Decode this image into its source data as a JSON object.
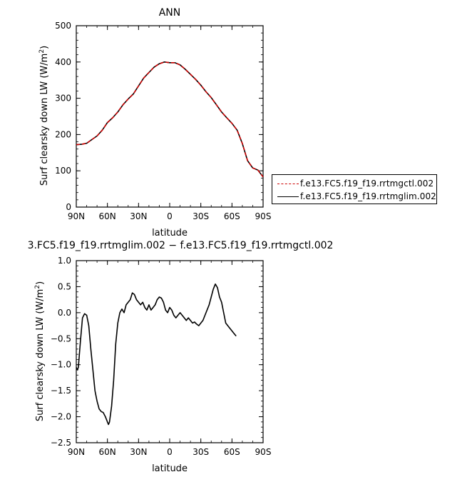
{
  "chart_data": [
    {
      "type": "line",
      "title": "ANN",
      "xlabel": "latitude",
      "ylabel": "Surf clearsky down LW (W/m²)",
      "xlim": [
        -90,
        90
      ],
      "ylim": [
        0,
        500
      ],
      "x_ticks": [
        {
          "value": -90,
          "label": "90N"
        },
        {
          "value": -60,
          "label": "60N"
        },
        {
          "value": -30,
          "label": "30N"
        },
        {
          "value": 0,
          "label": "0"
        },
        {
          "value": 30,
          "label": "30S"
        },
        {
          "value": 60,
          "label": "60S"
        },
        {
          "value": 90,
          "label": "90S"
        }
      ],
      "y_ticks": [
        0,
        100,
        200,
        300,
        400,
        500
      ],
      "legend_position": "right",
      "series": [
        {
          "name": "f.e13.FC5.f19_f19.rrtmgctl.002",
          "color": "#cc0000",
          "dash": "dashed",
          "points": [
            [
              -90,
              172
            ],
            [
              -85,
              173
            ],
            [
              -80,
              176
            ],
            [
              -75,
              186
            ],
            [
              -70,
              196
            ],
            [
              -65,
              212
            ],
            [
              -60,
              233
            ],
            [
              -55,
              246
            ],
            [
              -50,
              262
            ],
            [
              -45,
              282
            ],
            [
              -40,
              298
            ],
            [
              -35,
              312
            ],
            [
              -30,
              334
            ],
            [
              -25,
              356
            ],
            [
              -20,
              371
            ],
            [
              -15,
              386
            ],
            [
              -10,
              395
            ],
            [
              -5,
              400
            ],
            [
              0,
              398
            ],
            [
              5,
              398
            ],
            [
              10,
              392
            ],
            [
              15,
              380
            ],
            [
              20,
              366
            ],
            [
              25,
              352
            ],
            [
              30,
              336
            ],
            [
              35,
              318
            ],
            [
              40,
              302
            ],
            [
              45,
              282
            ],
            [
              50,
              262
            ],
            [
              55,
              246
            ],
            [
              60,
              231
            ],
            [
              65,
              212
            ],
            [
              70,
              175
            ],
            [
              75,
              128
            ],
            [
              80,
              108
            ],
            [
              85,
              102
            ],
            [
              90,
              83
            ]
          ]
        },
        {
          "name": "f.e13.FC5.f19_f19.rrtmglim.002",
          "color": "#000000",
          "dash": "solid",
          "points": [
            [
              -90,
              172
            ],
            [
              -85,
              173
            ],
            [
              -80,
              176
            ],
            [
              -75,
              186
            ],
            [
              -70,
              196
            ],
            [
              -65,
              212
            ],
            [
              -60,
              233
            ],
            [
              -55,
              246
            ],
            [
              -50,
              262
            ],
            [
              -45,
              282
            ],
            [
              -40,
              298
            ],
            [
              -35,
              312
            ],
            [
              -30,
              334
            ],
            [
              -25,
              356
            ],
            [
              -20,
              371
            ],
            [
              -15,
              386
            ],
            [
              -10,
              395
            ],
            [
              -5,
              400
            ],
            [
              0,
              398
            ],
            [
              5,
              398
            ],
            [
              10,
              392
            ],
            [
              15,
              380
            ],
            [
              20,
              366
            ],
            [
              25,
              352
            ],
            [
              30,
              336
            ],
            [
              35,
              318
            ],
            [
              40,
              302
            ],
            [
              45,
              282
            ],
            [
              50,
              262
            ],
            [
              55,
              246
            ],
            [
              60,
              231
            ],
            [
              65,
              212
            ],
            [
              70,
              175
            ],
            [
              75,
              128
            ],
            [
              80,
              108
            ],
            [
              85,
              102
            ],
            [
              90,
              83
            ]
          ]
        }
      ]
    },
    {
      "type": "line",
      "title": "3.FC5.f19_f19.rrtmglim.002 − f.e13.FC5.f19_f19.rrtmgctl.002",
      "xlabel": "latitude",
      "ylabel": "Surf clearsky down LW (W/m²)",
      "xlim": [
        -90,
        90
      ],
      "ylim": [
        -2.5,
        1.0
      ],
      "x_ticks": [
        {
          "value": -90,
          "label": "90N"
        },
        {
          "value": -60,
          "label": "60N"
        },
        {
          "value": -30,
          "label": "30N"
        },
        {
          "value": 0,
          "label": "0"
        },
        {
          "value": 30,
          "label": "30S"
        },
        {
          "value": 60,
          "label": "60S"
        },
        {
          "value": 90,
          "label": "90S"
        }
      ],
      "y_ticks": [
        "1.0",
        "0.5",
        "0.0",
        "−0.5",
        "−1.0",
        "−1.5",
        "−2.0",
        "−2.5"
      ],
      "series": [
        {
          "color": "#000000",
          "dash": "solid",
          "points": [
            [
              -90,
              -1.05
            ],
            [
              -89,
              -1.1
            ],
            [
              -88,
              -1.05
            ],
            [
              -86,
              -0.55
            ],
            [
              -84,
              -0.1
            ],
            [
              -82,
              -0.02
            ],
            [
              -80,
              -0.05
            ],
            [
              -78,
              -0.25
            ],
            [
              -76,
              -0.7
            ],
            [
              -74,
              -1.1
            ],
            [
              -72,
              -1.5
            ],
            [
              -70,
              -1.7
            ],
            [
              -68,
              -1.85
            ],
            [
              -66,
              -1.9
            ],
            [
              -64,
              -1.92
            ],
            [
              -62,
              -2.0
            ],
            [
              -60,
              -2.1
            ],
            [
              -59,
              -2.15
            ],
            [
              -58,
              -2.1
            ],
            [
              -56,
              -1.8
            ],
            [
              -54,
              -1.3
            ],
            [
              -52,
              -0.6
            ],
            [
              -50,
              -0.2
            ],
            [
              -48,
              0.0
            ],
            [
              -46,
              0.07
            ],
            [
              -44,
              0.0
            ],
            [
              -42,
              0.15
            ],
            [
              -40,
              0.2
            ],
            [
              -38,
              0.25
            ],
            [
              -36,
              0.38
            ],
            [
              -34,
              0.35
            ],
            [
              -32,
              0.25
            ],
            [
              -30,
              0.2
            ],
            [
              -28,
              0.15
            ],
            [
              -26,
              0.2
            ],
            [
              -24,
              0.1
            ],
            [
              -22,
              0.05
            ],
            [
              -20,
              0.15
            ],
            [
              -18,
              0.05
            ],
            [
              -16,
              0.1
            ],
            [
              -14,
              0.15
            ],
            [
              -12,
              0.25
            ],
            [
              -10,
              0.3
            ],
            [
              -8,
              0.28
            ],
            [
              -6,
              0.2
            ],
            [
              -4,
              0.05
            ],
            [
              -2,
              0.0
            ],
            [
              0,
              0.1
            ],
            [
              2,
              0.05
            ],
            [
              4,
              -0.05
            ],
            [
              6,
              -0.1
            ],
            [
              8,
              -0.05
            ],
            [
              10,
              0.0
            ],
            [
              12,
              -0.05
            ],
            [
              14,
              -0.1
            ],
            [
              16,
              -0.15
            ],
            [
              18,
              -0.1
            ],
            [
              20,
              -0.15
            ],
            [
              22,
              -0.2
            ],
            [
              24,
              -0.18
            ],
            [
              26,
              -0.22
            ],
            [
              28,
              -0.25
            ],
            [
              30,
              -0.2
            ],
            [
              32,
              -0.15
            ],
            [
              34,
              -0.05
            ],
            [
              36,
              0.05
            ],
            [
              38,
              0.15
            ],
            [
              40,
              0.3
            ],
            [
              42,
              0.45
            ],
            [
              44,
              0.55
            ],
            [
              46,
              0.48
            ],
            [
              48,
              0.3
            ],
            [
              50,
              0.2
            ],
            [
              52,
              0.0
            ],
            [
              54,
              -0.2
            ],
            [
              56,
              -0.25
            ],
            [
              58,
              -0.3
            ],
            [
              60,
              -0.35
            ],
            [
              62,
              -0.4
            ],
            [
              64,
              -0.45
            ]
          ]
        }
      ]
    }
  ]
}
